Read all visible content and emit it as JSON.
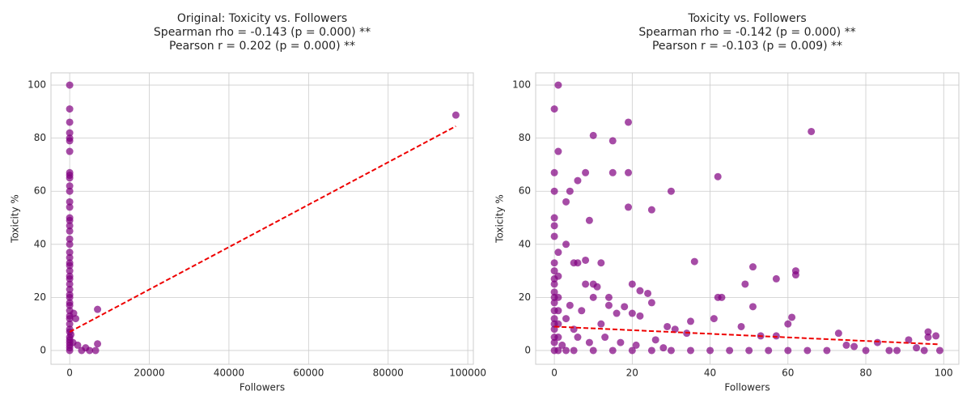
{
  "chart_data": [
    {
      "type": "scatter",
      "title": [
        "Original: Toxicity vs. Followers",
        "Spearman rho = -0.143 (p = 0.000) **",
        "Pearson r = 0.202 (p = 0.000) **"
      ],
      "xlabel": "Followers",
      "ylabel": "Toxicity %",
      "color": "#800080",
      "fit_color": "#ee0000",
      "grid": true,
      "xlim": [
        -4700,
        101400
      ],
      "ylim": [
        -5.2,
        104.6
      ],
      "xticks": [
        0,
        20000,
        40000,
        60000,
        80000,
        100000
      ],
      "yticks": [
        0,
        20,
        40,
        60,
        80,
        100
      ],
      "x": [
        0,
        0,
        0,
        0,
        0,
        0,
        0,
        0,
        0,
        0,
        0,
        0,
        0,
        0,
        0,
        0,
        0,
        0,
        0,
        0,
        0,
        0,
        0,
        0,
        0,
        0,
        0,
        0,
        0,
        0,
        0,
        0,
        0,
        0,
        0,
        0,
        0,
        0,
        0,
        0,
        0,
        0,
        0,
        0,
        0,
        1000,
        1500,
        300,
        800,
        2000,
        3000,
        4000,
        5000,
        6500,
        7000,
        7000,
        97000
      ],
      "values": [
        100,
        91,
        86,
        82,
        80,
        79,
        75,
        67,
        66,
        65,
        62,
        60,
        56,
        54,
        50,
        49,
        47,
        45,
        42,
        40,
        37,
        35,
        33,
        32,
        30,
        28,
        27,
        25,
        23,
        21,
        20,
        18,
        17,
        15,
        13,
        12,
        10,
        8,
        7,
        5,
        4,
        3,
        2,
        1,
        0,
        14,
        12,
        6,
        3,
        2,
        0,
        1,
        0,
        0,
        2.5,
        15.5,
        88.7
      ],
      "fit": {
        "x": [
          0,
          97000
        ],
        "values": [
          7,
          84.5
        ]
      }
    },
    {
      "type": "scatter",
      "title": [
        "Toxicity vs. Followers",
        "Spearman rho = -0.142 (p = 0.000) **",
        "Pearson r = -0.103 (p = 0.009) **"
      ],
      "xlabel": "Followers",
      "ylabel": "Toxicity %",
      "color": "#800080",
      "fit_color": "#ee0000",
      "grid": true,
      "xlim": [
        -4.8,
        103.9
      ],
      "ylim": [
        -5.2,
        104.6
      ],
      "xticks": [
        0,
        20,
        40,
        60,
        80,
        100
      ],
      "yticks": [
        0,
        20,
        40,
        60,
        80,
        100
      ],
      "x": [
        0,
        0,
        0,
        0,
        0,
        0,
        0,
        0,
        0,
        0,
        0,
        0,
        0,
        0,
        0,
        0,
        0,
        0,
        0,
        0,
        1,
        1,
        1,
        1,
        1,
        1,
        1,
        1,
        1,
        3,
        3,
        4,
        5,
        6,
        6,
        8,
        8,
        8,
        9,
        10,
        10,
        11,
        10,
        12,
        14,
        15,
        15,
        19,
        19,
        19,
        25,
        30,
        42,
        66,
        36,
        51,
        62,
        62,
        57,
        49,
        20,
        22,
        24,
        25,
        18,
        14,
        16,
        20,
        12,
        22,
        35,
        41,
        42,
        43,
        51,
        61,
        60,
        48,
        29,
        31,
        34,
        53,
        57,
        73,
        75,
        83,
        91,
        96,
        96,
        98,
        99,
        95,
        93,
        88,
        86,
        80,
        77,
        70,
        65,
        60,
        55,
        50,
        45,
        40,
        35,
        30,
        25,
        20,
        15,
        10,
        5,
        3,
        2,
        3,
        4,
        7,
        5,
        6,
        9,
        13,
        17,
        21,
        26,
        28
      ],
      "values": [
        91,
        67,
        60,
        50,
        47,
        43,
        33,
        30,
        27,
        25,
        22,
        20,
        18,
        15,
        12,
        10,
        8,
        5,
        3,
        0,
        100,
        75,
        37,
        28,
        20,
        15,
        10,
        5,
        0,
        56,
        40,
        60,
        33,
        64,
        33,
        67,
        34,
        25,
        49,
        81,
        25,
        24,
        20,
        33,
        20,
        79,
        67,
        86,
        67,
        54,
        53,
        60,
        65.5,
        82.5,
        33.5,
        31.5,
        30,
        28.5,
        27,
        25,
        25,
        22.5,
        21.5,
        18,
        16.5,
        17,
        14,
        14,
        10,
        13,
        11,
        12,
        20,
        20,
        16.5,
        12.5,
        10,
        9,
        9,
        8,
        6.5,
        5.5,
        5.5,
        6.5,
        2,
        3,
        4,
        7,
        5,
        5.5,
        0,
        0,
        1,
        0,
        0,
        0,
        1.5,
        0,
        0,
        0,
        0,
        0,
        0,
        0,
        0,
        0,
        0,
        0,
        0,
        0,
        0,
        0,
        2,
        12,
        17,
        15,
        8,
        5,
        3,
        5,
        3,
        2,
        4,
        1
      ],
      "fit": {
        "x": [
          0,
          99
        ],
        "values": [
          9,
          2.3
        ]
      }
    }
  ]
}
